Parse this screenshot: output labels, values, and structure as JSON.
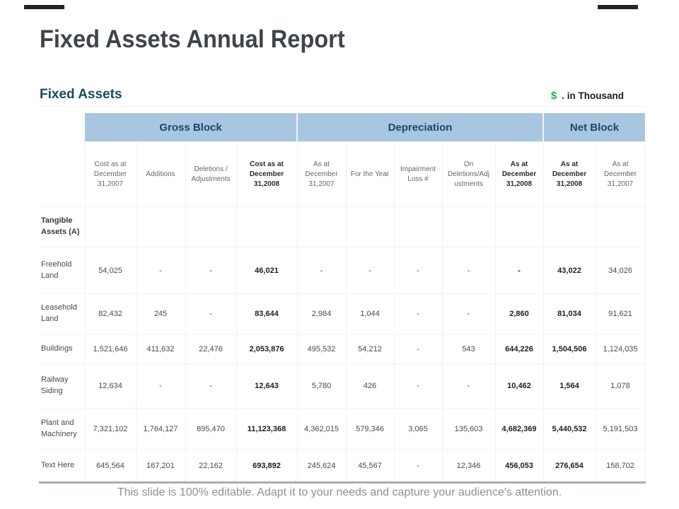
{
  "slide": {
    "title": "Fixed Assets Annual Report",
    "section_heading": "Fixed Assets",
    "currency_symbol": "$",
    "currency_note": ". in Thousand",
    "footer": "This slide is 100% editable. Adapt it to your needs and capture your audience's attention."
  },
  "colors": {
    "header_band_bg": "#a9c6e1",
    "header_band_text": "#1f4569",
    "section_heading_text": "#1a4a5e",
    "title_text": "#3e444b",
    "dollar_green": "#22b14c",
    "footer_text": "#8b9196",
    "table_bottom_border": "#a9adb0"
  },
  "table": {
    "groups": [
      {
        "label": "Gross Block",
        "span": 4
      },
      {
        "label": "Depreciation",
        "span": 5
      },
      {
        "label": "Net Block",
        "span": 2
      }
    ],
    "columns": [
      {
        "label": "Cost as at December 31,2007",
        "bold": false
      },
      {
        "label": "Additions",
        "bold": false
      },
      {
        "label": "Deletions / Adjustments",
        "bold": false
      },
      {
        "label": "Cost as at December 31,2008",
        "bold": true
      },
      {
        "label": "As at December 31,2007",
        "bold": false
      },
      {
        "label": "For the Year",
        "bold": false
      },
      {
        "label": "Impairment Loss #",
        "bold": false
      },
      {
        "label": "On Deletions/Adj ustments",
        "bold": false
      },
      {
        "label": "As at December 31,2008",
        "bold": true
      },
      {
        "label": "As at December 31,2008",
        "bold": true
      },
      {
        "label": "As at December 31,2007",
        "bold": false
      }
    ],
    "rows": [
      {
        "label": "Tangible Assets (A)",
        "bold_label": true,
        "values": [
          "",
          "",
          "",
          "",
          "",
          "",
          "",
          "",
          "",
          "",
          ""
        ]
      },
      {
        "label": "Freehold Land",
        "bold_label": false,
        "values": [
          "54,025",
          "-",
          "-",
          "46,021",
          "-",
          "-",
          "-",
          "-",
          "-",
          "43,022",
          "34,026"
        ]
      },
      {
        "label": "Leasehold Land",
        "bold_label": false,
        "values": [
          "82,432",
          "245",
          "-",
          "83,644",
          "2,984",
          "1,044",
          "-",
          "-",
          "2,860",
          "81,034",
          "91,621"
        ]
      },
      {
        "label": "Buildings",
        "bold_label": false,
        "values": [
          "1,521,646",
          "411,632",
          "22,476",
          "2,053,876",
          "495,532",
          "54,212",
          "-",
          "543",
          "644,226",
          "1,504,506",
          "1,124,035"
        ]
      },
      {
        "label": "Railway Siding",
        "bold_label": false,
        "values": [
          "12,634",
          "-",
          "-",
          "12,643",
          "5,780",
          "426",
          "-",
          "-",
          "10,462",
          "1,564",
          "1,078"
        ]
      },
      {
        "label": "Plant and Machinery",
        "bold_label": false,
        "values": [
          "7,321,102",
          "1,764,127",
          "895,470",
          "11,123,368",
          "4,362,015",
          "579,346",
          "3,065",
          "135,603",
          "4,682,369",
          "5,440,532",
          "5,191,503"
        ]
      },
      {
        "label": "Text Here",
        "bold_label": false,
        "values": [
          "645,564",
          "167,201",
          "22,162",
          "693,892",
          "245,624",
          "45,567",
          "-",
          "12,346",
          "456,053",
          "276,654",
          "158,702"
        ]
      }
    ]
  }
}
